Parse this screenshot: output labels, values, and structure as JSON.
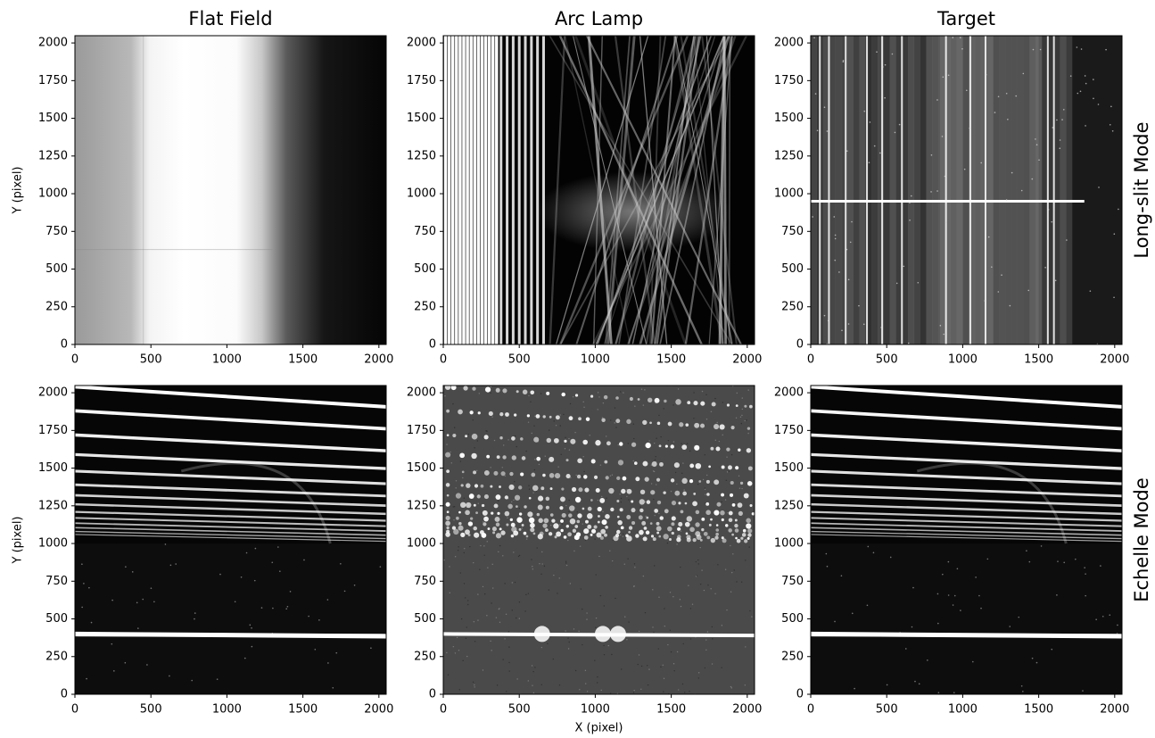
{
  "chart_data": [
    {
      "type": "image",
      "title": "Flat Field",
      "ylabel": "Y (pixel)",
      "xlim": [
        0,
        2048
      ],
      "ylim": [
        0,
        2048
      ],
      "xticks": [
        0,
        500,
        1000,
        1500,
        2000
      ],
      "yticks": [
        0,
        250,
        500,
        750,
        1000,
        1250,
        1500,
        1750,
        2000
      ]
    },
    {
      "type": "image",
      "title": "Arc Lamp",
      "xlim": [
        0,
        2048
      ],
      "ylim": [
        0,
        2048
      ],
      "xticks": [
        0,
        500,
        1000,
        1500,
        2000
      ],
      "yticks": [
        0,
        250,
        500,
        750,
        1000,
        1250,
        1500,
        1750,
        2000
      ]
    },
    {
      "type": "image",
      "title": "Target",
      "xlim": [
        0,
        2048
      ],
      "ylim": [
        0,
        2048
      ],
      "xticks": [
        0,
        500,
        1000,
        1500,
        2000
      ],
      "yticks": [
        0,
        250,
        500,
        750,
        1000,
        1250,
        1500,
        1750,
        2000
      ]
    },
    {
      "type": "image",
      "ylabel": "Y (pixel)",
      "xlim": [
        0,
        2048
      ],
      "ylim": [
        0,
        2048
      ],
      "xticks": [
        0,
        500,
        1000,
        1500,
        2000
      ],
      "yticks": [
        0,
        250,
        500,
        750,
        1000,
        1250,
        1500,
        1750,
        2000
      ]
    },
    {
      "type": "image",
      "xlabel": "X (pixel)",
      "xlim": [
        0,
        2048
      ],
      "ylim": [
        0,
        2048
      ],
      "xticks": [
        0,
        500,
        1000,
        1500,
        2000
      ],
      "yticks": [
        0,
        250,
        500,
        750,
        1000,
        1250,
        1500,
        1750,
        2000
      ]
    },
    {
      "type": "image",
      "xlim": [
        0,
        2048
      ],
      "ylim": [
        0,
        2048
      ],
      "xticks": [
        0,
        500,
        1000,
        1500,
        2000
      ],
      "yticks": [
        0,
        250,
        500,
        750,
        1000,
        1250,
        1500,
        1750,
        2000
      ]
    }
  ],
  "row_labels": [
    "Long-slit Mode",
    "Echelle Mode"
  ]
}
